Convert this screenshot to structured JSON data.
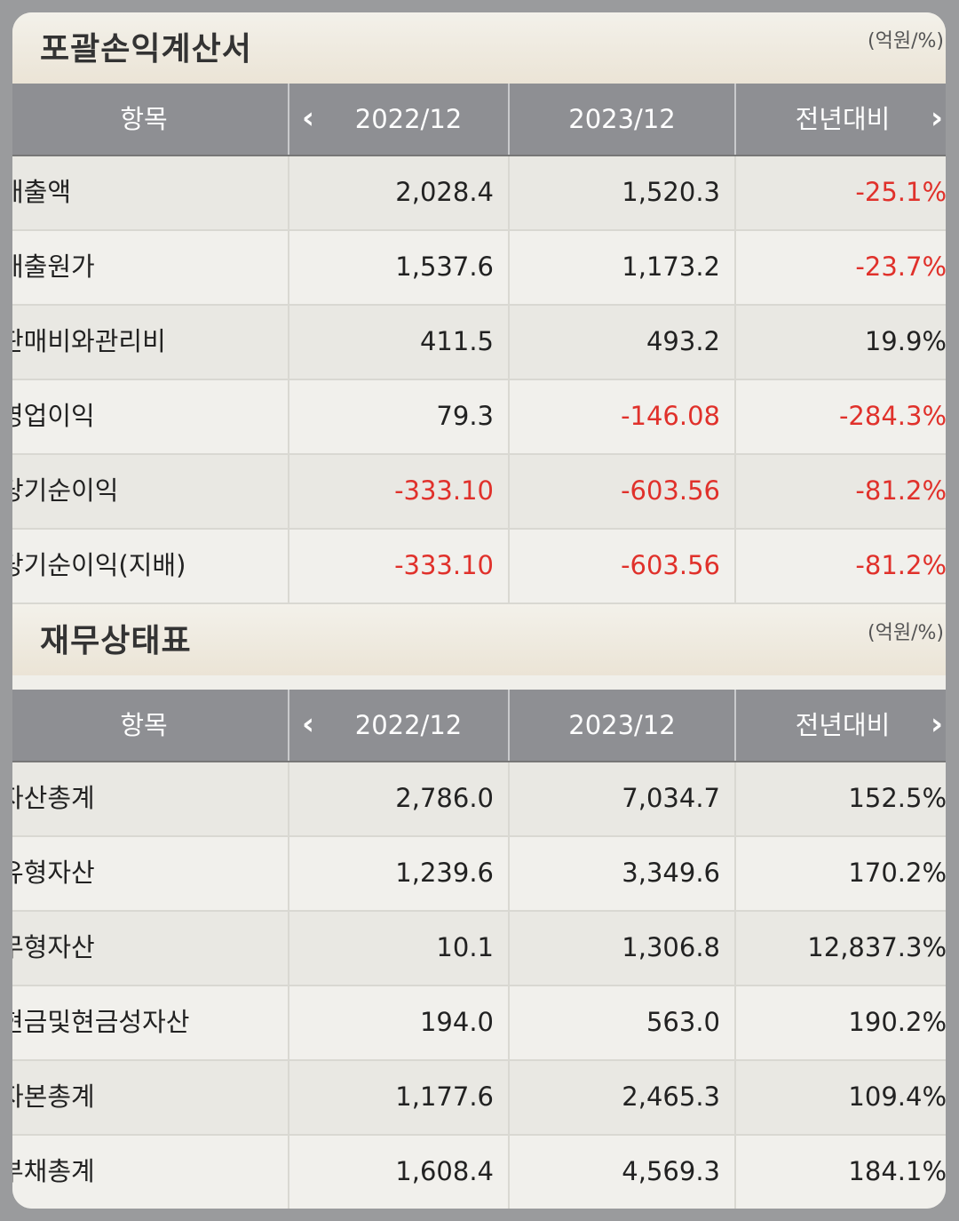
{
  "income_statement": {
    "title": "포괄손익계산서",
    "unit": "(억원/%)",
    "headers": {
      "item": "항목",
      "col1": "2022/12",
      "col2": "2023/12",
      "col3": "전년대비"
    },
    "rows": [
      {
        "label": "매출액",
        "v2022": "2,028.4",
        "v2023": "1,520.3",
        "yoy": "-25.1%"
      },
      {
        "label": "매출원가",
        "v2022": "1,537.6",
        "v2023": "1,173.2",
        "yoy": "-23.7%"
      },
      {
        "label": "판매비와관리비",
        "v2022": "411.5",
        "v2023": "493.2",
        "yoy": "19.9%"
      },
      {
        "label": "영업이익",
        "v2022": "79.3",
        "v2023": "-146.08",
        "yoy": "-284.3%"
      },
      {
        "label": "당기순이익",
        "v2022": "-333.10",
        "v2023": "-603.56",
        "yoy": "-81.2%"
      },
      {
        "label": "당기순이익(지배)",
        "v2022": "-333.10",
        "v2023": "-603.56",
        "yoy": "-81.2%"
      }
    ]
  },
  "balance_sheet": {
    "title": "재무상태표",
    "unit": "(억원/%)",
    "headers": {
      "item": "항목",
      "col1": "2022/12",
      "col2": "2023/12",
      "col3": "전년대비"
    },
    "rows": [
      {
        "label": "자산총계",
        "v2022": "2,786.0",
        "v2023": "7,034.7",
        "yoy": "152.5%"
      },
      {
        "label": "유형자산",
        "v2022": "1,239.6",
        "v2023": "3,349.6",
        "yoy": "170.2%"
      },
      {
        "label": "무형자산",
        "v2022": "10.1",
        "v2023": "1,306.8",
        "yoy": "12,837.3%"
      },
      {
        "label": "현금및현금성자산",
        "v2022": "194.0",
        "v2023": "563.0",
        "yoy": "190.2%"
      },
      {
        "label": "자본총계",
        "v2022": "1,177.6",
        "v2023": "2,465.3",
        "yoy": "109.4%"
      },
      {
        "label": "부채총계",
        "v2022": "1,608.4",
        "v2023": "4,569.3",
        "yoy": "184.1%"
      }
    ]
  },
  "icons": {
    "prev": "chevron-left-icon",
    "next": "chevron-right-icon"
  },
  "colors": {
    "negative": "#e0312b",
    "header_bg": "#8e8f93"
  }
}
